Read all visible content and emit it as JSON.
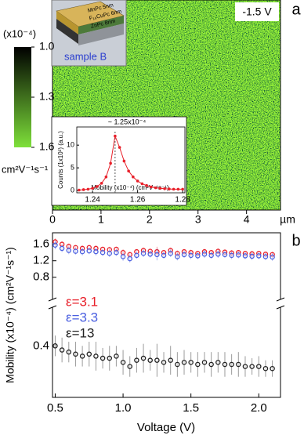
{
  "chart_data": [
    {
      "type": "image",
      "panel": "a",
      "annotation": "-1.5 V",
      "xlim": [
        0,
        4.7
      ],
      "xticks": [
        0,
        1,
        2,
        3,
        4
      ],
      "x_unit": "µm",
      "colorbar": {
        "title": "(x10⁻⁴)",
        "unit": "cm²V⁻¹s⁻¹",
        "clim": [
          1.0,
          1.6
        ],
        "ticks": [
          {
            "value": 1,
            "label": "1.0"
          },
          1.3,
          1.6
        ],
        "colors": [
          "#000000",
          "#7ee03a"
        ]
      },
      "inset": {
        "title": "sample B",
        "layers": [
          "MnPc 5nm",
          "F₁₆CuPc 6nm",
          "ZnPc 8nm"
        ]
      }
    },
    {
      "type": "line",
      "title": "~ 1.25x10⁻⁴",
      "xlabel": "Mobility (x10⁻⁴) (cm²V⁻¹s⁻¹)",
      "ylabel": "Counts (1x10³) (a.u.)",
      "x": [
        1.234,
        1.236,
        1.238,
        1.24,
        1.242,
        1.244,
        1.246,
        1.248,
        1.25,
        1.252,
        1.254,
        1.256,
        1.258,
        1.26,
        1.262,
        1.264,
        1.266,
        1.268,
        1.27,
        1.272,
        1.274,
        1.276,
        1.278,
        1.28
      ],
      "values": [
        0.1,
        0.2,
        0.3,
        0.5,
        0.9,
        1.6,
        3.0,
        6.0,
        12.0,
        9.5,
        6.5,
        4.3,
        3.0,
        2.1,
        1.5,
        1.1,
        0.8,
        0.6,
        0.5,
        0.4,
        0.35,
        0.3,
        0.3,
        0.3
      ],
      "color": "#e8202a",
      "xlim": [
        1.233,
        1.281
      ],
      "xticks": [
        1.24,
        1.26,
        1.28
      ],
      "ylim": [
        -0.5,
        14
      ],
      "yticks": [
        0,
        5,
        10
      ],
      "peak_x": 1.25
    },
    {
      "type": "scatter",
      "panel": "b",
      "xlabel": "Voltage (V)",
      "ylabel": "Mobility (x10⁻⁴) (cm²V⁻¹s⁻¹)",
      "x": [
        0.5,
        0.55,
        0.6,
        0.65,
        0.7,
        0.75,
        0.8,
        0.85,
        0.9,
        0.95,
        1,
        1.05,
        1.1,
        1.15,
        1.2,
        1.25,
        1.3,
        1.35,
        1.4,
        1.45,
        1.5,
        1.55,
        1.6,
        1.65,
        1.7,
        1.75,
        1.8,
        1.85,
        1.9,
        1.95,
        2,
        2.05,
        2.1
      ],
      "xlim": [
        0.48,
        2.16
      ],
      "xticks": [
        0.5,
        {
          "value": 1,
          "label": "1.0"
        },
        1.5,
        {
          "value": 2,
          "label": "2.0"
        }
      ],
      "ylim": [
        0.15,
        1.86
      ],
      "axis_break": [
        0.5,
        0.7
      ],
      "yticks": [
        0.4,
        0.8,
        1.2,
        1.6
      ],
      "series": [
        {
          "name": "ε=3.1",
          "color": "#e8202a",
          "values": [
            1.66,
            1.6,
            1.55,
            1.52,
            1.5,
            1.52,
            1.5,
            1.48,
            1.47,
            1.48,
            1.4,
            1.35,
            1.42,
            1.45,
            1.43,
            1.42,
            1.4,
            1.45,
            1.38,
            1.42,
            1.4,
            1.38,
            1.42,
            1.4,
            1.43,
            1.41,
            1.39,
            1.4,
            1.38,
            1.37,
            1.38,
            1.36,
            1.35
          ],
          "errors": [
            0.08,
            0.07,
            0.07,
            0.06,
            0.07,
            0.06,
            0.07,
            0.06,
            0.07,
            0.06,
            0.08,
            0.07,
            0.06,
            0.07,
            0.06,
            0.12,
            0.06,
            0.07,
            0.07,
            0.06,
            0.07,
            0.06,
            0.07,
            0.06,
            0.07,
            0.06,
            0.07,
            0.06,
            0.06,
            0.07,
            0.06,
            0.06,
            0.07
          ]
        },
        {
          "name": "ε=3.3",
          "color": "#4a5fe0",
          "values": [
            1.58,
            1.5,
            1.45,
            1.43,
            1.42,
            1.44,
            1.42,
            1.4,
            1.38,
            1.4,
            1.3,
            1.25,
            1.33,
            1.38,
            1.36,
            1.35,
            1.33,
            1.38,
            1.3,
            1.35,
            1.33,
            1.32,
            1.36,
            1.33,
            1.36,
            1.35,
            1.33,
            1.34,
            1.32,
            1.31,
            1.32,
            1.3,
            1.29
          ],
          "errors": [
            0.1,
            0.09,
            0.09,
            0.08,
            0.09,
            0.08,
            0.09,
            0.08,
            0.09,
            0.08,
            0.1,
            0.09,
            0.08,
            0.09,
            0.08,
            0.14,
            0.08,
            0.09,
            0.09,
            0.08,
            0.09,
            0.08,
            0.09,
            0.08,
            0.09,
            0.08,
            0.09,
            0.08,
            0.08,
            0.09,
            0.08,
            0.08,
            0.09
          ]
        },
        {
          "name": "ε=13",
          "color": "#222222",
          "values": [
            0.4,
            0.38,
            0.37,
            0.36,
            0.35,
            0.36,
            0.35,
            0.34,
            0.34,
            0.35,
            0.32,
            0.3,
            0.33,
            0.34,
            0.33,
            0.33,
            0.32,
            0.33,
            0.31,
            0.32,
            0.32,
            0.31,
            0.32,
            0.31,
            0.32,
            0.31,
            0.31,
            0.31,
            0.3,
            0.3,
            0.3,
            0.29,
            0.29
          ],
          "errors": [
            0.05,
            0.06,
            0.05,
            0.06,
            0.05,
            0.06,
            0.07,
            0.05,
            0.06,
            0.05,
            0.06,
            0.05,
            0.06,
            0.07,
            0.05,
            0.08,
            0.05,
            0.07,
            0.06,
            0.06,
            0.05,
            0.06,
            0.05,
            0.06,
            0.05,
            0.06,
            0.05,
            0.06,
            0.05,
            0.04,
            0.05,
            0.04,
            0.04
          ]
        }
      ]
    }
  ]
}
